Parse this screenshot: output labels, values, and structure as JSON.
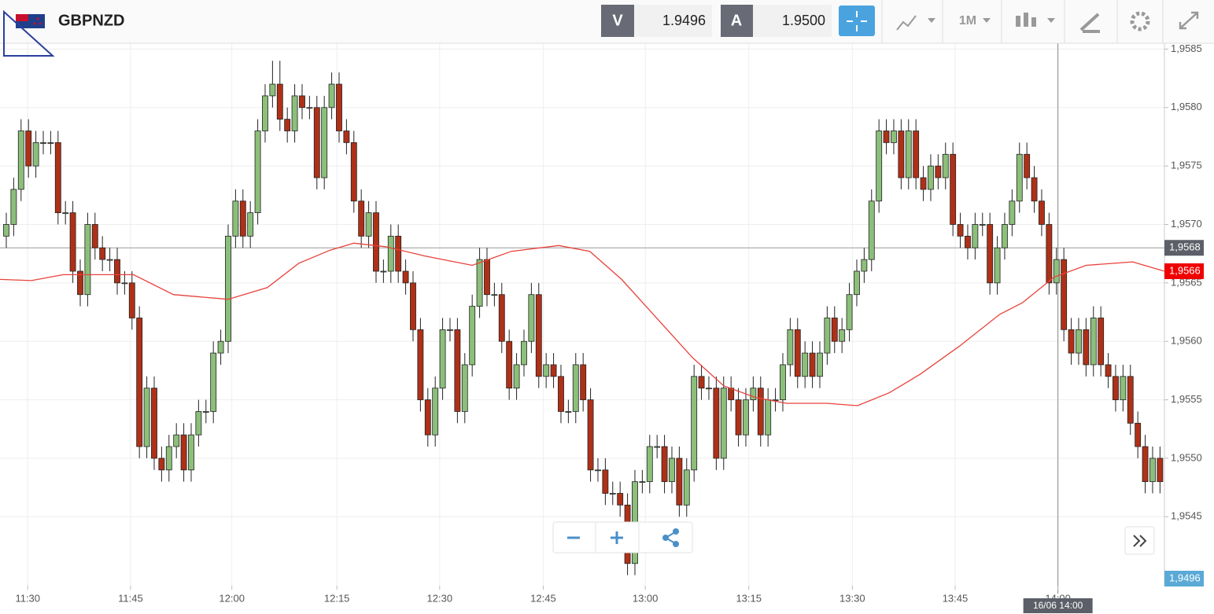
{
  "header": {
    "symbol": "GBPNZD",
    "sell_label": "V",
    "sell_price": "1.9496",
    "buy_label": "A",
    "buy_price": "1.9500",
    "period": "1M"
  },
  "chart_data": {
    "type": "candlestick",
    "colors": {
      "up": "#8cbf7a",
      "down": "#ae3117",
      "moving_average": "#e8413a"
    },
    "xlim": [
      -0.85,
      156.6
    ],
    "ylim": [
      1.95391,
      1.95855
    ],
    "yticks": [
      {
        "value": 1.9545,
        "label": "1,9545"
      },
      {
        "value": 1.955,
        "label": "1,9550"
      },
      {
        "value": 1.9555,
        "label": "1,9555"
      },
      {
        "value": 1.956,
        "label": "1,9560"
      },
      {
        "value": 1.9565,
        "label": "1,9565"
      },
      {
        "value": 1.957,
        "label": "1,9570"
      },
      {
        "value": 1.9575,
        "label": "1,9575"
      },
      {
        "value": 1.958,
        "label": "1,9580"
      },
      {
        "value": 1.9585,
        "label": "1,9585"
      }
    ],
    "xticks": [
      {
        "value": 2.9,
        "label": "11:30"
      },
      {
        "value": 16.8,
        "label": "11:45"
      },
      {
        "value": 30.5,
        "label": "12:00"
      },
      {
        "value": 44.7,
        "label": "12:15"
      },
      {
        "value": 58.6,
        "label": "12:30"
      },
      {
        "value": 72.6,
        "label": "12:45"
      },
      {
        "value": 86.4,
        "label": "13:00"
      },
      {
        "value": 100.4,
        "label": "13:15"
      },
      {
        "value": 114.4,
        "label": "13:30"
      },
      {
        "value": 128.3,
        "label": "13:45"
      },
      {
        "value": 142.2,
        "label": "14:00"
      }
    ],
    "grid": true,
    "ohlc": [
      [
        1.9569,
        1.9571,
        1.9568,
        1.957
      ],
      [
        1.957,
        1.9574,
        1.9569,
        1.9573
      ],
      [
        1.9573,
        1.9579,
        1.9572,
        1.9578
      ],
      [
        1.9578,
        1.9579,
        1.9574,
        1.9575
      ],
      [
        1.9575,
        1.9578,
        1.9574,
        1.9577
      ],
      [
        1.9577,
        1.9578,
        1.9576,
        1.9577
      ],
      [
        1.9577,
        1.9578,
        1.9576,
        1.9577
      ],
      [
        1.9577,
        1.9578,
        1.957,
        1.9571
      ],
      [
        1.9571,
        1.9572,
        1.957,
        1.9571
      ],
      [
        1.9571,
        1.9572,
        1.9565,
        1.9566
      ],
      [
        1.9566,
        1.9567,
        1.9563,
        1.9564
      ],
      [
        1.9564,
        1.9571,
        1.9563,
        1.957
      ],
      [
        1.957,
        1.9571,
        1.9567,
        1.9568
      ],
      [
        1.9568,
        1.9569,
        1.9566,
        1.9567
      ],
      [
        1.9567,
        1.9568,
        1.9566,
        1.9567
      ],
      [
        1.9567,
        1.9568,
        1.9564,
        1.9565
      ],
      [
        1.9565,
        1.9566,
        1.9564,
        1.9565
      ],
      [
        1.9565,
        1.9566,
        1.9561,
        1.9562
      ],
      [
        1.9562,
        1.9563,
        1.955,
        1.9551
      ],
      [
        1.9551,
        1.9557,
        1.955,
        1.9556
      ],
      [
        1.9556,
        1.9557,
        1.9549,
        1.955
      ],
      [
        1.955,
        1.9551,
        1.9548,
        1.9549
      ],
      [
        1.9549,
        1.9552,
        1.9548,
        1.9551
      ],
      [
        1.9551,
        1.9553,
        1.955,
        1.9552
      ],
      [
        1.9552,
        1.9553,
        1.9548,
        1.9549
      ],
      [
        1.9549,
        1.9553,
        1.9548,
        1.9552
      ],
      [
        1.9552,
        1.9555,
        1.9551,
        1.9554
      ],
      [
        1.9554,
        1.9555,
        1.9553,
        1.9554
      ],
      [
        1.9554,
        1.956,
        1.9553,
        1.9559
      ],
      [
        1.9559,
        1.9561,
        1.9558,
        1.956
      ],
      [
        1.956,
        1.957,
        1.9559,
        1.9569
      ],
      [
        1.9569,
        1.9573,
        1.9568,
        1.9572
      ],
      [
        1.9572,
        1.9573,
        1.9568,
        1.9569
      ],
      [
        1.9569,
        1.9572,
        1.9568,
        1.9571
      ],
      [
        1.9571,
        1.9579,
        1.957,
        1.9578
      ],
      [
        1.9578,
        1.9582,
        1.9577,
        1.9581
      ],
      [
        1.9581,
        1.9584,
        1.958,
        1.9582
      ],
      [
        1.9582,
        1.9584,
        1.9578,
        1.9579
      ],
      [
        1.9579,
        1.958,
        1.9577,
        1.9578
      ],
      [
        1.9578,
        1.9582,
        1.9577,
        1.9581
      ],
      [
        1.9581,
        1.9582,
        1.9579,
        1.958
      ],
      [
        1.958,
        1.9581,
        1.9579,
        1.958
      ],
      [
        1.958,
        1.9581,
        1.9573,
        1.9574
      ],
      [
        1.9574,
        1.9581,
        1.9573,
        1.958
      ],
      [
        1.958,
        1.9583,
        1.9579,
        1.9582
      ],
      [
        1.9582,
        1.9583,
        1.9577,
        1.9578
      ],
      [
        1.9578,
        1.9579,
        1.9576,
        1.9577
      ],
      [
        1.9577,
        1.9578,
        1.9571,
        1.9572
      ],
      [
        1.9572,
        1.9573,
        1.9568,
        1.9569
      ],
      [
        1.9569,
        1.9572,
        1.9568,
        1.9571
      ],
      [
        1.9571,
        1.9572,
        1.9565,
        1.9566
      ],
      [
        1.9566,
        1.9567,
        1.9565,
        1.9566
      ],
      [
        1.9566,
        1.957,
        1.9565,
        1.9569
      ],
      [
        1.9569,
        1.957,
        1.9565,
        1.9566
      ],
      [
        1.9566,
        1.9567,
        1.9564,
        1.9565
      ],
      [
        1.9565,
        1.9566,
        1.956,
        1.9561
      ],
      [
        1.9561,
        1.9562,
        1.9554,
        1.9555
      ],
      [
        1.9555,
        1.9556,
        1.9551,
        1.9552
      ],
      [
        1.9552,
        1.9557,
        1.9551,
        1.9556
      ],
      [
        1.9556,
        1.9562,
        1.9555,
        1.9561
      ],
      [
        1.9561,
        1.9562,
        1.956,
        1.9561
      ],
      [
        1.9561,
        1.9562,
        1.9553,
        1.9554
      ],
      [
        1.9554,
        1.9559,
        1.9553,
        1.9558
      ],
      [
        1.9558,
        1.9564,
        1.9557,
        1.9563
      ],
      [
        1.9563,
        1.9568,
        1.9562,
        1.9567
      ],
      [
        1.9567,
        1.9568,
        1.9563,
        1.9564
      ],
      [
        1.9564,
        1.9565,
        1.9563,
        1.9564
      ],
      [
        1.9564,
        1.9565,
        1.9559,
        1.956
      ],
      [
        1.956,
        1.9561,
        1.9555,
        1.9556
      ],
      [
        1.9556,
        1.9559,
        1.9555,
        1.9558
      ],
      [
        1.9558,
        1.9561,
        1.9557,
        1.956
      ],
      [
        1.956,
        1.9565,
        1.9559,
        1.9564
      ],
      [
        1.9564,
        1.9565,
        1.9556,
        1.9557
      ],
      [
        1.9557,
        1.9559,
        1.9556,
        1.9558
      ],
      [
        1.9558,
        1.9559,
        1.9556,
        1.9557
      ],
      [
        1.9557,
        1.9558,
        1.9553,
        1.9554
      ],
      [
        1.9554,
        1.9555,
        1.9553,
        1.9554
      ],
      [
        1.9554,
        1.9559,
        1.9553,
        1.9558
      ],
      [
        1.9558,
        1.9559,
        1.9554,
        1.9555
      ],
      [
        1.9555,
        1.9556,
        1.9548,
        1.9549
      ],
      [
        1.9549,
        1.955,
        1.9548,
        1.9549
      ],
      [
        1.9549,
        1.955,
        1.9546,
        1.9547
      ],
      [
        1.9547,
        1.9548,
        1.9546,
        1.9547
      ],
      [
        1.9547,
        1.9548,
        1.9545,
        1.9546
      ],
      [
        1.9546,
        1.9547,
        1.954,
        1.9541
      ],
      [
        1.9541,
        1.9549,
        1.954,
        1.9548
      ],
      [
        1.9548,
        1.9549,
        1.9547,
        1.9548
      ],
      [
        1.9548,
        1.9552,
        1.9547,
        1.9551
      ],
      [
        1.9551,
        1.9552,
        1.955,
        1.9551
      ],
      [
        1.9551,
        1.9552,
        1.9547,
        1.9548
      ],
      [
        1.9548,
        1.9551,
        1.9547,
        1.955
      ],
      [
        1.955,
        1.9551,
        1.9545,
        1.9546
      ],
      [
        1.9546,
        1.955,
        1.9545,
        1.9549
      ],
      [
        1.9549,
        1.9558,
        1.9548,
        1.9557
      ],
      [
        1.9557,
        1.9558,
        1.9555,
        1.9556
      ],
      [
        1.9556,
        1.9557,
        1.9555,
        1.9556
      ],
      [
        1.9556,
        1.9557,
        1.9549,
        1.955
      ],
      [
        1.955,
        1.9557,
        1.9549,
        1.9556
      ],
      [
        1.9556,
        1.9557,
        1.9554,
        1.9555
      ],
      [
        1.9555,
        1.9556,
        1.9551,
        1.9552
      ],
      [
        1.9552,
        1.9556,
        1.9551,
        1.9555
      ],
      [
        1.9555,
        1.9557,
        1.9554,
        1.9556
      ],
      [
        1.9556,
        1.9557,
        1.9551,
        1.9552
      ],
      [
        1.9552,
        1.9556,
        1.9551,
        1.9555
      ],
      [
        1.9555,
        1.9556,
        1.9554,
        1.9555
      ],
      [
        1.9555,
        1.9559,
        1.9554,
        1.9558
      ],
      [
        1.9558,
        1.9562,
        1.9557,
        1.9561
      ],
      [
        1.9561,
        1.9562,
        1.9556,
        1.9557
      ],
      [
        1.9557,
        1.956,
        1.9556,
        1.9559
      ],
      [
        1.9559,
        1.956,
        1.9556,
        1.9557
      ],
      [
        1.9557,
        1.956,
        1.9556,
        1.9559
      ],
      [
        1.9559,
        1.9563,
        1.9558,
        1.9562
      ],
      [
        1.9562,
        1.9563,
        1.9559,
        1.956
      ],
      [
        1.956,
        1.9562,
        1.9559,
        1.9561
      ],
      [
        1.9561,
        1.9565,
        1.956,
        1.9564
      ],
      [
        1.9564,
        1.9567,
        1.9563,
        1.9566
      ],
      [
        1.9566,
        1.9568,
        1.9565,
        1.9567
      ],
      [
        1.9567,
        1.9573,
        1.9566,
        1.9572
      ],
      [
        1.9572,
        1.9579,
        1.9571,
        1.9578
      ],
      [
        1.9578,
        1.9579,
        1.9576,
        1.9577
      ],
      [
        1.9577,
        1.9579,
        1.9576,
        1.9578
      ],
      [
        1.9578,
        1.9579,
        1.9573,
        1.9574
      ],
      [
        1.9574,
        1.9579,
        1.9573,
        1.9578
      ],
      [
        1.9578,
        1.9579,
        1.9573,
        1.9574
      ],
      [
        1.9574,
        1.9575,
        1.9572,
        1.9573
      ],
      [
        1.9573,
        1.9576,
        1.9572,
        1.9575
      ],
      [
        1.9575,
        1.9576,
        1.9573,
        1.9574
      ],
      [
        1.9574,
        1.9577,
        1.9573,
        1.9576
      ],
      [
        1.9576,
        1.9577,
        1.9569,
        1.957
      ],
      [
        1.957,
        1.9571,
        1.9568,
        1.9569
      ],
      [
        1.9569,
        1.957,
        1.9567,
        1.9568
      ],
      [
        1.9568,
        1.9571,
        1.9567,
        1.957
      ],
      [
        1.957,
        1.9571,
        1.9569,
        1.957
      ],
      [
        1.957,
        1.9571,
        1.9564,
        1.9565
      ],
      [
        1.9565,
        1.9569,
        1.9564,
        1.9568
      ],
      [
        1.9568,
        1.9571,
        1.9567,
        1.957
      ],
      [
        1.957,
        1.9573,
        1.9569,
        1.9572
      ],
      [
        1.9572,
        1.9577,
        1.9571,
        1.9576
      ],
      [
        1.9576,
        1.9577,
        1.9573,
        1.9574
      ],
      [
        1.9574,
        1.9575,
        1.9571,
        1.9572
      ],
      [
        1.9572,
        1.9573,
        1.9569,
        1.957
      ],
      [
        1.957,
        1.9571,
        1.9564,
        1.9565
      ],
      [
        1.9565,
        1.9568,
        1.9564,
        1.9567
      ],
      [
        1.9567,
        1.9568,
        1.956,
        1.9561
      ],
      [
        1.9561,
        1.9562,
        1.9558,
        1.9559
      ],
      [
        1.9559,
        1.9562,
        1.9558,
        1.9561
      ],
      [
        1.9561,
        1.9562,
        1.9557,
        1.9558
      ],
      [
        1.9558,
        1.9563,
        1.9557,
        1.9562
      ],
      [
        1.9562,
        1.9563,
        1.9557,
        1.9558
      ],
      [
        1.9558,
        1.9559,
        1.9556,
        1.9557
      ],
      [
        1.9557,
        1.9558,
        1.9554,
        1.9555
      ],
      [
        1.9555,
        1.9558,
        1.9554,
        1.9557
      ],
      [
        1.9557,
        1.9558,
        1.9552,
        1.9553
      ],
      [
        1.9553,
        1.9554,
        1.955,
        1.9551
      ],
      [
        1.9551,
        1.9552,
        1.9547,
        1.9548
      ],
      [
        1.9548,
        1.9551,
        1.9547,
        1.955
      ],
      [
        1.955,
        1.9551,
        1.9547,
        1.9548
      ]
    ],
    "moving_average": {
      "x": [
        -0.85,
        3.4,
        7.7,
        11.9,
        17.2,
        22.6,
        30,
        35.3,
        39.6,
        43.8,
        47,
        51.3,
        56.6,
        63,
        68.3,
        74.7,
        78.9,
        83.2,
        88.5,
        92.8,
        97,
        101.3,
        105.5,
        110.9,
        115.1,
        119.4,
        123.6,
        128.9,
        134.3,
        137.4,
        141.7,
        146,
        152.3,
        156.6
      ],
      "values": [
        1.95653,
        1.95652,
        1.95657,
        1.95657,
        1.95657,
        1.9564,
        1.95636,
        1.95646,
        1.95667,
        1.95678,
        1.95684,
        1.95681,
        1.95673,
        1.95665,
        1.95677,
        1.95682,
        1.95677,
        1.95653,
        1.95616,
        1.95586,
        1.95562,
        1.95552,
        1.95547,
        1.95547,
        1.95545,
        1.95556,
        1.95572,
        1.95596,
        1.95623,
        1.95633,
        1.95655,
        1.95665,
        1.95668,
        1.9566
      ]
    },
    "last_ma": {
      "value": 1.9566,
      "label": "1,9566"
    },
    "crosshair": {
      "x": 142.2,
      "x_label": "16/06 14:00",
      "y": {
        "value": 1.9568,
        "label": "1,9568"
      }
    },
    "bid_label": "1,9496"
  }
}
